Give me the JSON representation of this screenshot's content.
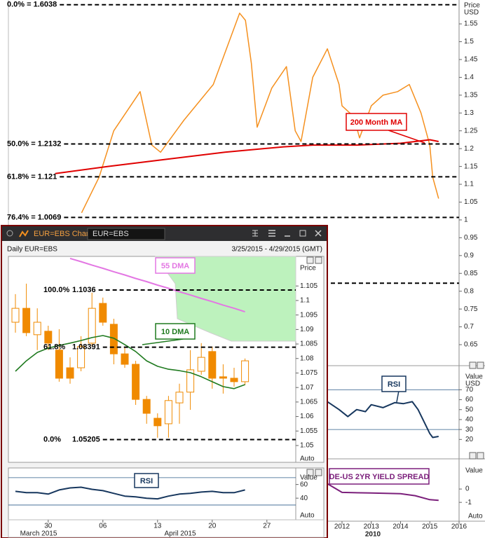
{
  "ui": {
    "window_title": "EUR=EBS Chart",
    "symbol_input": "EUR=EBS",
    "auto_labels": [
      "Auto",
      "Auto",
      "Auto"
    ]
  },
  "chart_data": [
    {
      "type": "line",
      "ylabel": "Price",
      "yunit": "USD",
      "xlim": [
        2000.6,
        2016
      ],
      "xticks": [
        2012,
        2013,
        2014,
        2015,
        2016
      ],
      "xlabel": "2010",
      "ylim": [
        0.595,
        1.617
      ],
      "yticks": [
        0.65,
        0.7,
        0.75,
        0.8,
        0.85,
        0.9,
        0.95,
        1,
        1.05,
        1.1,
        1.15,
        1.2,
        1.25,
        1.3,
        1.35,
        1.4,
        1.45,
        1.5,
        1.55
      ],
      "series": [
        {
          "color": "#f5901e",
          "x": [
            2003.1,
            2003.7,
            2004.2,
            2005.1,
            2005.5,
            2005.8,
            2006.6,
            2007.6,
            2008.5,
            2008.7,
            2008.9,
            2009.1,
            2009.6,
            2010.1,
            2010.4,
            2010.6,
            2011.0,
            2011.5,
            2011.9,
            2012.0,
            2012.4,
            2012.6,
            2013.0,
            2013.4,
            2013.9,
            2014.3,
            2014.7,
            2015.0,
            2015.1,
            2015.3
          ],
          "values": [
            1.02,
            1.12,
            1.25,
            1.36,
            1.21,
            1.19,
            1.28,
            1.38,
            1.58,
            1.56,
            1.44,
            1.26,
            1.37,
            1.43,
            1.25,
            1.22,
            1.4,
            1.48,
            1.38,
            1.32,
            1.29,
            1.23,
            1.32,
            1.35,
            1.36,
            1.38,
            1.3,
            1.21,
            1.12,
            1.06
          ]
        },
        {
          "name": "200 Month MA",
          "color": "#e00000",
          "x": [
            2002.2,
            2004,
            2006,
            2008,
            2010,
            2011,
            2012.5,
            2014,
            2015,
            2015.3
          ],
          "values": [
            1.13,
            1.15,
            1.17,
            1.19,
            1.205,
            1.21,
            1.21,
            1.215,
            1.225,
            1.22
          ]
        }
      ],
      "fib_levels": [
        {
          "label": "0.0% = 1.6038",
          "value": 1.6038
        },
        {
          "label": "50.0% = 1.2132",
          "value": 1.2132
        },
        {
          "label": "61.8% = 1.121",
          "value": 1.121
        },
        {
          "label": "76.4% = 1.0069",
          "value": 1.0069
        },
        {
          "value": 0.8226
        }
      ]
    },
    {
      "type": "line",
      "ylabel": "Value",
      "yunit": "USD",
      "xlim": [
        2000.6,
        2016
      ],
      "ylim": [
        4,
        90
      ],
      "yticks": [
        20,
        30,
        40,
        50,
        60,
        70
      ],
      "levels": [
        70,
        30
      ],
      "series": [
        {
          "name": "RSI",
          "color": "#17375e",
          "x": [
            2011.5,
            2011.9,
            2012.2,
            2012.5,
            2012.8,
            2013.0,
            2013.4,
            2013.8,
            2014.1,
            2014.4,
            2014.6,
            2014.8,
            2015.0,
            2015.1,
            2015.3
          ],
          "values": [
            58,
            50,
            43,
            50,
            48,
            55,
            52,
            57,
            56,
            58,
            50,
            38,
            26,
            22,
            23
          ]
        }
      ]
    },
    {
      "type": "line",
      "ylabel": "Value",
      "xlim": [
        2000.6,
        2016
      ],
      "ylim": [
        -2.2,
        2
      ],
      "yticks": [
        0,
        -1
      ],
      "series": [
        {
          "name": "DE-US 2YR YIELD SPREAD",
          "color": "#7b1f7b",
          "x": [
            2011.5,
            2012,
            2013,
            2014,
            2014.5,
            2015,
            2015.3
          ],
          "values": [
            0.4,
            -0.25,
            -0.3,
            -0.35,
            -0.5,
            -0.8,
            -0.85
          ]
        }
      ]
    },
    {
      "type": "candlestick",
      "title": "Daily EUR=EBS",
      "subtitle": "3/25/2015 - 4/29/2015 (GMT)",
      "ylabel": "Price",
      "months": [
        "March 2015",
        "April 2015"
      ],
      "categories": [
        null,
        null,
        null,
        "30",
        null,
        null,
        null,
        null,
        "06",
        null,
        null,
        null,
        null,
        "13",
        null,
        null,
        null,
        null,
        "20",
        null,
        null,
        null,
        null,
        "27",
        null,
        null
      ],
      "open": [
        1.0925,
        1.0973,
        1.0882,
        1.0894,
        1.0829,
        1.0768,
        1.0768,
        1.0853,
        1.099,
        1.0918,
        1.0816,
        1.078,
        1.0659,
        1.0594,
        1.0575,
        1.0647,
        1.0684,
        1.0756,
        1.0824,
        1.0737,
        1.0732,
        1.072,
        null,
        null,
        null,
        null
      ],
      "high": [
        1.1022,
        1.1058,
        1.0973,
        1.0913,
        1.0901,
        1.0804,
        1.0877,
        1.1027,
        1.101,
        1.0937,
        1.0841,
        1.0792,
        1.0671,
        1.0611,
        1.0671,
        1.0713,
        1.0829,
        1.0853,
        1.0841,
        1.078,
        1.0768,
        1.08,
        null,
        null,
        null,
        null
      ],
      "low": [
        1.0889,
        1.0877,
        1.0829,
        1.0829,
        1.072,
        1.0713,
        1.0756,
        1.0841,
        1.0913,
        1.078,
        1.0768,
        1.064,
        1.0575,
        1.0527,
        1.0527,
        1.0575,
        1.0623,
        1.0744,
        1.0696,
        1.0679,
        1.0703,
        1.0708,
        null,
        null,
        null,
        null
      ],
      "close": [
        1.0973,
        1.0889,
        1.0925,
        1.0853,
        1.0732,
        1.0732,
        1.0841,
        1.0973,
        1.0925,
        1.0816,
        1.078,
        1.0659,
        1.0611,
        1.0568,
        1.0655,
        1.0684,
        1.0761,
        1.0804,
        1.0732,
        1.0732,
        1.072,
        1.0792,
        null,
        null,
        null,
        null
      ],
      "color_up": "#ffffff",
      "color_down": "#f08a00",
      "ylim": [
        1.0442,
        1.1152
      ],
      "yticks": [
        1.05,
        1.055,
        1.06,
        1.065,
        1.07,
        1.075,
        1.08,
        1.085,
        1.09,
        1.095,
        1.1,
        1.105
      ],
      "series": [
        {
          "name": "10 DMA",
          "color": "#1f7a1f",
          "values": [
            1.0756,
            1.0792,
            1.0821,
            1.0836,
            1.0845,
            1.0853,
            1.0862,
            1.0872,
            1.0879,
            1.087,
            1.0848,
            1.0824,
            1.0792,
            1.0773,
            1.0763,
            1.0758,
            1.0751,
            1.0737,
            1.072,
            1.0703,
            1.0696,
            1.071,
            null,
            null,
            null,
            null
          ]
        },
        {
          "name": "55 DMA",
          "color": "#e377e3",
          "values": [
            null,
            null,
            null,
            null,
            null,
            1.1145,
            1.1134,
            1.1122,
            1.1111,
            1.1099,
            1.1088,
            1.1076,
            1.1065,
            1.1053,
            1.1042,
            1.103,
            1.1019,
            1.1007,
            1.0996,
            1.0984,
            1.0973,
            1.0961,
            null,
            null,
            null,
            null
          ]
        }
      ],
      "fib_levels": [
        {
          "label": "100.0%",
          "value": 1.1036
        },
        {
          "label": "61.8%",
          "value": 1.08391
        },
        {
          "label": "0.0%",
          "value": 1.05205
        }
      ]
    },
    {
      "type": "line",
      "ylabel": "Value",
      "ylim": [
        8.4,
        84.2
      ],
      "yticks": [
        60,
        40
      ],
      "levels": [
        70,
        30
      ],
      "series": [
        {
          "name": "RSI",
          "color": "#17375e",
          "values": [
            50,
            48,
            48,
            46,
            52,
            55,
            56,
            53,
            51,
            47,
            43,
            42,
            40,
            39,
            43,
            46,
            47,
            49,
            50,
            48,
            48,
            52,
            null,
            null,
            null,
            null
          ]
        }
      ]
    }
  ]
}
